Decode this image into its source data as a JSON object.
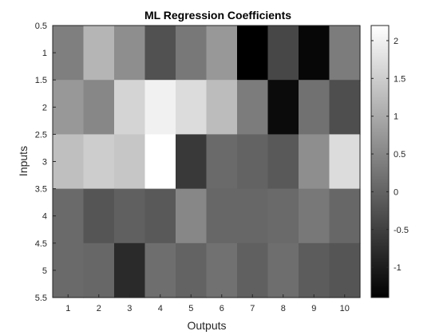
{
  "chart_data": {
    "type": "heatmap",
    "title": "ML Regression Coefficients",
    "xlabel": "Outputs",
    "ylabel": "Inputs",
    "colormap": "gray",
    "x_ticks": [
      "1",
      "2",
      "3",
      "4",
      "5",
      "6",
      "7",
      "8",
      "9",
      "10"
    ],
    "y_ticks": [
      "0.5",
      "1",
      "1.5",
      "2",
      "2.5",
      "3",
      "3.5",
      "4",
      "4.5",
      "5",
      "5.5"
    ],
    "y_tick_values": [
      0.5,
      1,
      1.5,
      2,
      2.5,
      3,
      3.5,
      4,
      4.5,
      5,
      5.5
    ],
    "ylim": [
      0.5,
      5.5
    ],
    "xlim": [
      0.5,
      10.5
    ],
    "clim": [
      -1.4,
      2.2
    ],
    "colorbar_ticks": [
      "-1",
      "-0.5",
      "0",
      "0.5",
      "1",
      "1.5",
      "2"
    ],
    "colorbar_tick_values": [
      -1,
      -0.5,
      0,
      0.5,
      1,
      1.5,
      2
    ],
    "values": [
      [
        0.4,
        1.15,
        0.6,
        -0.25,
        0.3,
        0.75,
        -1.4,
        -0.4,
        -1.3,
        0.35
      ],
      [
        0.75,
        0.5,
        1.6,
        2.0,
        1.7,
        1.25,
        0.35,
        -1.25,
        0.2,
        -0.3
      ],
      [
        1.3,
        1.5,
        1.4,
        2.2,
        -0.6,
        0.1,
        0.0,
        -0.15,
        0.6,
        1.7
      ],
      [
        0.1,
        -0.2,
        -0.05,
        -0.15,
        0.5,
        0.05,
        0.05,
        0.1,
        0.3,
        0.05
      ],
      [
        0.1,
        0.05,
        -0.8,
        0.15,
        0.0,
        0.2,
        -0.05,
        0.15,
        -0.1,
        -0.2
      ]
    ]
  }
}
